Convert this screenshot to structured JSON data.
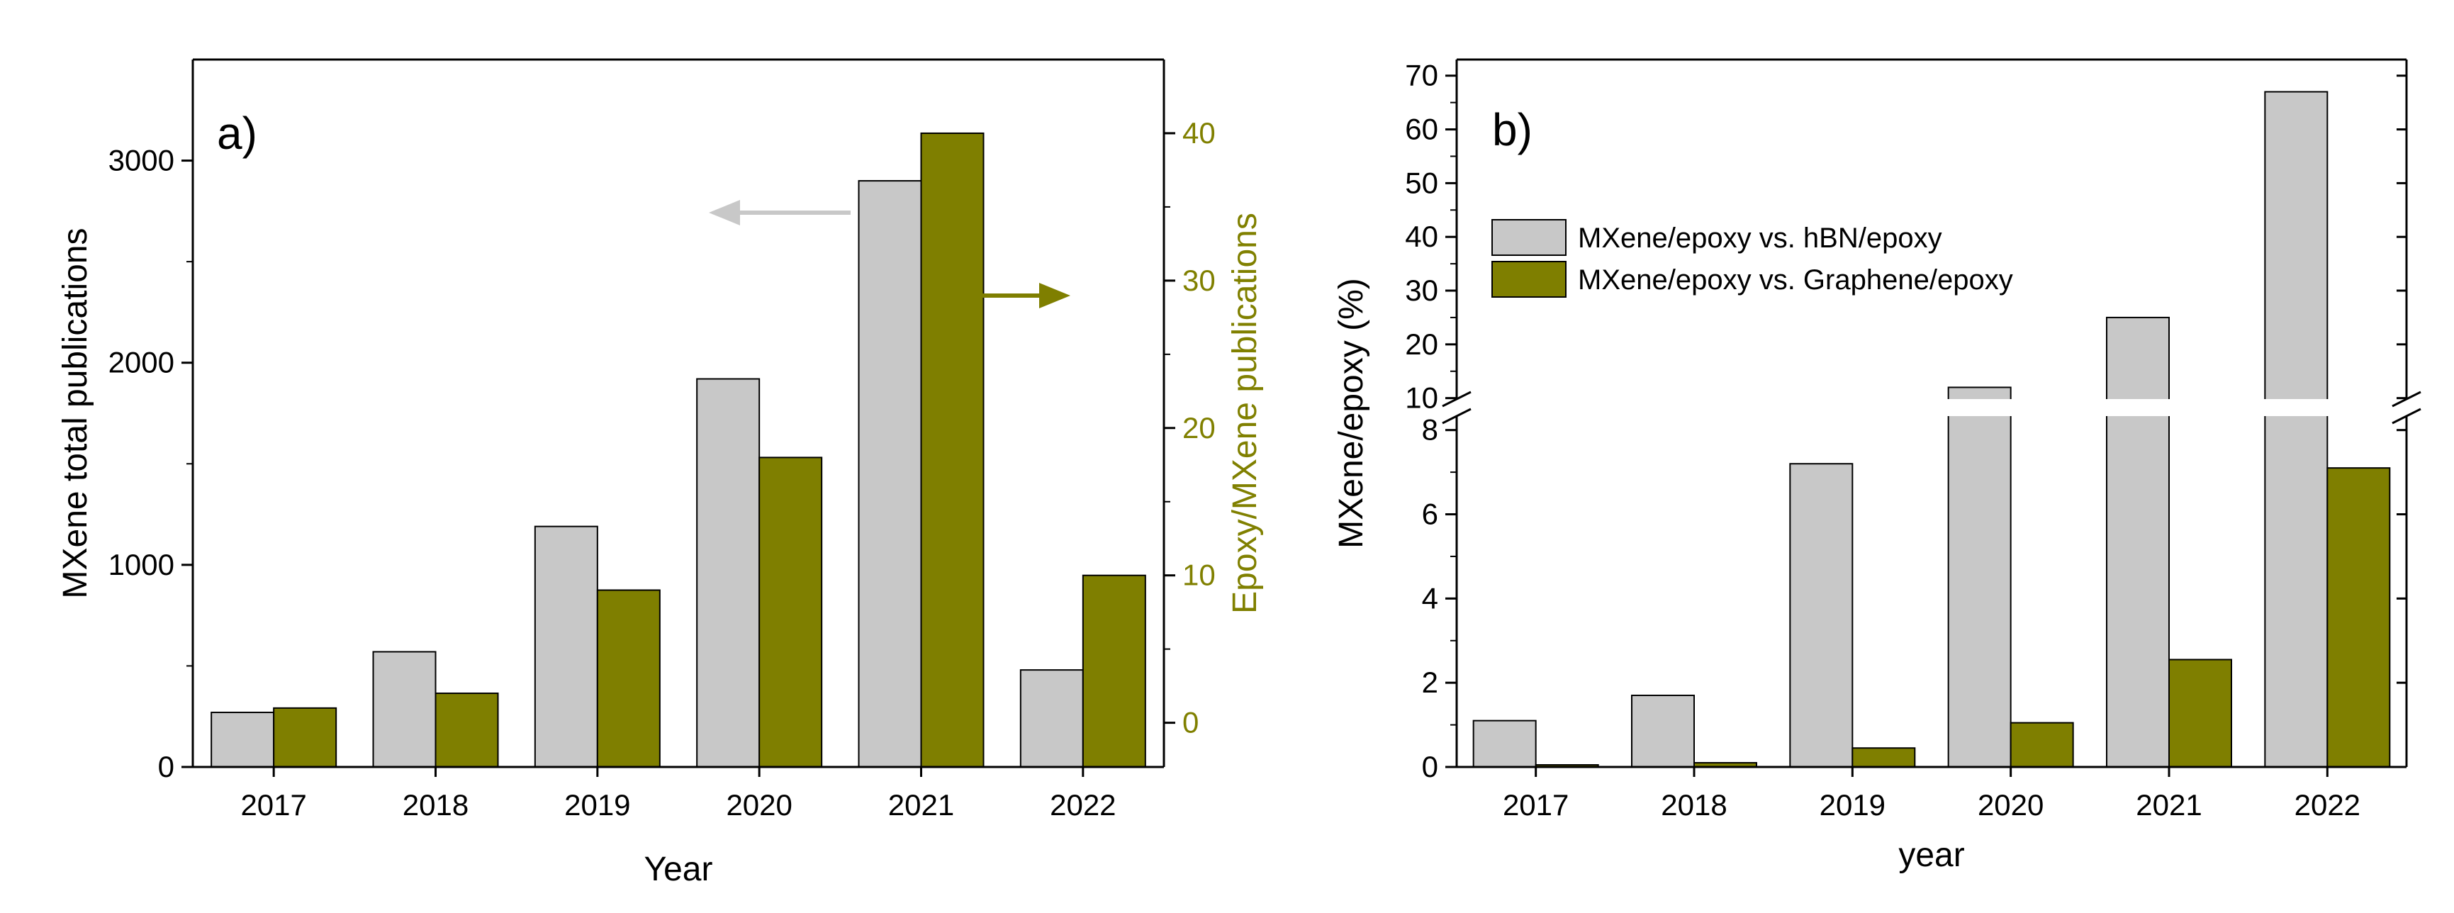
{
  "colors": {
    "gray": "#c8c8c8",
    "olive": "#7f7f00",
    "olive_text": "#808000",
    "arrow_gray": "#c8c8c8",
    "axis": "#000000"
  },
  "chart_data": [
    {
      "type": "bar",
      "panel_label": "a)",
      "categories": [
        "2017",
        "2018",
        "2019",
        "2020",
        "2021",
        "2022"
      ],
      "xlabel": "Year",
      "series": [
        {
          "name": "MXene total publications",
          "axis": "left",
          "values": [
            270,
            570,
            1190,
            1920,
            2900,
            480
          ]
        },
        {
          "name": "Epoxy/MXene publications",
          "axis": "right",
          "values": [
            1,
            2,
            9,
            18,
            40,
            10
          ]
        }
      ],
      "ylabel_left": "MXene total publications",
      "ylim_left": [
        0,
        3500
      ],
      "yticks_left": [
        "0",
        "1000",
        "2000",
        "3000"
      ],
      "ylabel_right": "Epoxy/MXene publications",
      "ylim_right": [
        -3,
        45
      ],
      "yticks_right": [
        "0",
        "10",
        "20",
        "30",
        "40"
      ],
      "annotations": [
        "arrow pointing to left axis",
        "arrow pointing to right axis"
      ]
    },
    {
      "type": "bar",
      "panel_label": "b)",
      "categories": [
        "2017",
        "2018",
        "2019",
        "2020",
        "2021",
        "2022"
      ],
      "xlabel": "year",
      "ylabel": "MXene/epoxy (%)",
      "series": [
        {
          "name": "MXene/epoxy vs. hBN/epoxy",
          "values": [
            1.1,
            1.7,
            7.2,
            12,
            25,
            67
          ]
        },
        {
          "name": "MXene/epoxy vs. Graphene/epoxy",
          "values": [
            0.05,
            0.1,
            0.45,
            1.05,
            2.55,
            7.1
          ]
        }
      ],
      "broken_axis": {
        "lower_range": [
          0,
          8.5
        ],
        "upper_range": [
          8.5,
          73
        ]
      },
      "yticks_lower": [
        "0",
        "2",
        "4",
        "6",
        "8"
      ],
      "yticks_upper": [
        "10",
        "20",
        "30",
        "40",
        "50",
        "60",
        "70"
      ],
      "legend_position": "upper-left"
    }
  ]
}
